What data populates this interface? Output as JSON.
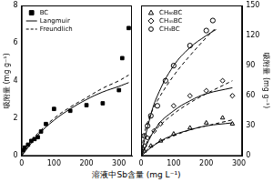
{
  "chart_data": [
    {
      "type": "scatter",
      "xlabel": "溶液中Sb含量 (mg L⁻¹)",
      "ylabel": "吸附量 (mg g⁻¹)",
      "xlim": [
        0,
        340
      ],
      "xticks": [
        0,
        100,
        200,
        300
      ],
      "ylim": [
        0,
        8
      ],
      "yticks": [
        0,
        2,
        4,
        6,
        8
      ],
      "grid": false,
      "legend": "upper left",
      "series": [
        {
          "name": "BC",
          "type": "scatter",
          "marker": "filled_square",
          "color": "#000000",
          "x": [
            5,
            10,
            20,
            30,
            40,
            50,
            60,
            75,
            100,
            150,
            200,
            250,
            300,
            310,
            330
          ],
          "values": [
            0.3,
            0.45,
            0.6,
            0.8,
            0.9,
            1.0,
            1.3,
            1.7,
            2.5,
            2.4,
            2.7,
            2.8,
            3.5,
            5.2,
            6.8
          ]
        },
        {
          "name": "Langmuir",
          "type": "line",
          "line_style": "solid",
          "color": "#000000",
          "x": [
            0,
            50,
            100,
            150,
            200,
            250,
            300,
            330
          ],
          "values": [
            0,
            1.1,
            1.9,
            2.5,
            3.0,
            3.4,
            3.7,
            3.9
          ]
        },
        {
          "name": "Freundlich",
          "type": "line",
          "line_style": "dashed",
          "color": "#000000",
          "x": [
            0,
            20,
            50,
            100,
            150,
            200,
            250,
            300,
            330
          ],
          "values": [
            0,
            0.6,
            1.2,
            2.0,
            2.6,
            3.1,
            3.6,
            4.0,
            4.3
          ]
        }
      ]
    },
    {
      "type": "scatter",
      "ylabel": "吸附量 (mg g⁻¹)",
      "xlim": [
        0,
        310
      ],
      "xticks": [
        0,
        100,
        200,
        300
      ],
      "ylim": [
        0,
        150
      ],
      "yticks": [
        0,
        30,
        60,
        90,
        120,
        150
      ],
      "grid": false,
      "legend": "upper left",
      "series": [
        {
          "name": "CH₆₀BC",
          "type": "scatter",
          "marker": "open_triangle",
          "color": "#000000",
          "x": [
            10,
            30,
            60,
            100,
            150,
            200,
            250,
            280
          ],
          "values": [
            5,
            10,
            15,
            22,
            28,
            33,
            38,
            32
          ]
        },
        {
          "name": "CH₄₅BC",
          "type": "scatter",
          "marker": "open_diamond",
          "color": "#000000",
          "x": [
            10,
            20,
            40,
            60,
            100,
            150,
            200,
            250,
            280
          ],
          "values": [
            10,
            18,
            25,
            32,
            50,
            60,
            65,
            75,
            60
          ]
        },
        {
          "name": "CH₃BC",
          "type": "scatter",
          "marker": "open_circle",
          "color": "#000000",
          "x": [
            10,
            20,
            30,
            50,
            75,
            100,
            150,
            200,
            220
          ],
          "values": [
            20,
            30,
            40,
            50,
            75,
            90,
            110,
            125,
            135
          ]
        },
        {
          "type": "line",
          "line_style": "solid",
          "color": "#000000",
          "x": [
            0,
            25,
            50,
            100,
            150,
            200,
            230
          ],
          "values": [
            0,
            35,
            60,
            90,
            108,
            120,
            126
          ]
        },
        {
          "type": "line",
          "line_style": "dashed",
          "color": "#000000",
          "x": [
            0,
            10,
            25,
            50,
            100,
            150,
            200,
            230
          ],
          "values": [
            0,
            22,
            38,
            55,
            80,
            100,
            118,
            128
          ]
        },
        {
          "type": "line",
          "line_style": "solid",
          "color": "#000000",
          "x": [
            0,
            50,
            100,
            150,
            200,
            280
          ],
          "values": [
            0,
            30,
            45,
            55,
            62,
            68
          ]
        },
        {
          "type": "line",
          "line_style": "dashed",
          "color": "#000000",
          "x": [
            0,
            25,
            50,
            100,
            150,
            200,
            280
          ],
          "values": [
            0,
            18,
            28,
            42,
            53,
            62,
            75
          ]
        },
        {
          "type": "line",
          "line_style": "solid",
          "color": "#000000",
          "x": [
            0,
            50,
            100,
            150,
            200,
            280
          ],
          "values": [
            0,
            13,
            21,
            26,
            30,
            33
          ]
        },
        {
          "type": "line",
          "line_style": "dashed",
          "color": "#000000",
          "x": [
            0,
            25,
            50,
            100,
            150,
            200,
            280
          ],
          "values": [
            0,
            8,
            13,
            20,
            26,
            30,
            36
          ]
        }
      ]
    }
  ]
}
